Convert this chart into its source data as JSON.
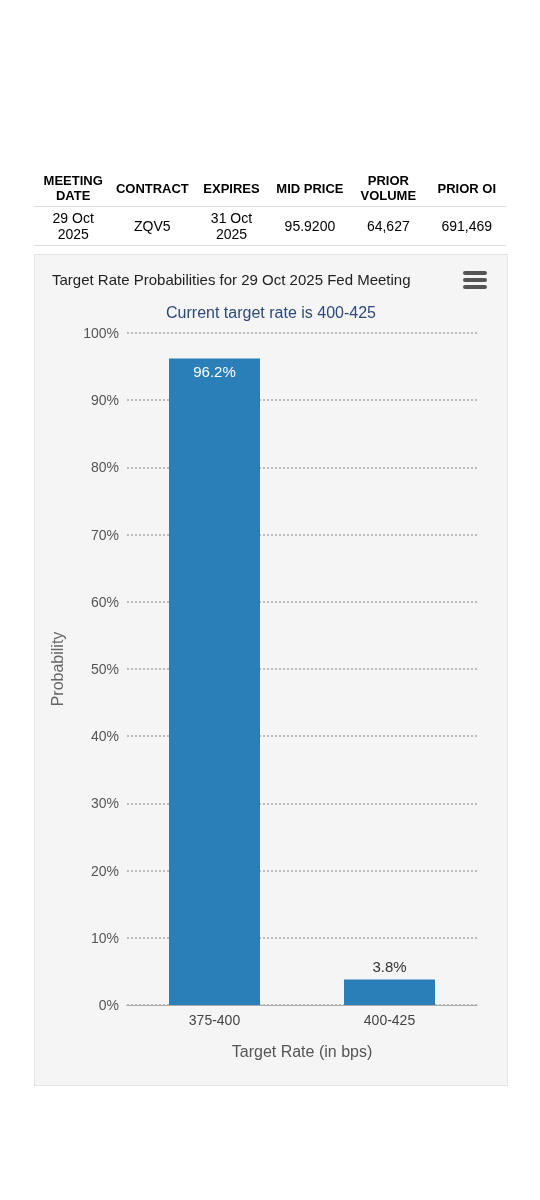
{
  "chart_data": [
    {
      "type": "other",
      "categories": [
        "MEETING DATE",
        "CONTRACT",
        "EXPIRES",
        "MID PRICE",
        "PRIOR VOLUME",
        "PRIOR OI"
      ],
      "annotations": [
        "29 Oct 2025",
        "ZQV5",
        "31 Oct 2025",
        "95.9200",
        "64,627",
        "691,469"
      ]
    },
    {
      "type": "bar",
      "title": "Target Rate Probabilities for 29 Oct 2025 Fed Meeting",
      "subtitle": "Current target rate is 400-425",
      "xlabel": "Target Rate (in bps)",
      "ylabel": "Probability",
      "categories": [
        "375-400",
        "400-425"
      ],
      "values": [
        96.2,
        3.8
      ],
      "color": "#2b7fb8",
      "value_labels": [
        "96.2%",
        "3.8%"
      ],
      "ylim": [
        0,
        100
      ],
      "yticks": [
        {
          "value": 0,
          "label": "0%"
        },
        {
          "value": 10,
          "label": "10%"
        },
        {
          "value": 20,
          "label": "20%"
        },
        {
          "value": 30,
          "label": "30%"
        },
        {
          "value": 40,
          "label": "40%"
        },
        {
          "value": 50,
          "label": "50%"
        },
        {
          "value": 60,
          "label": "60%"
        },
        {
          "value": 70,
          "label": "70%"
        },
        {
          "value": 80,
          "label": "80%"
        },
        {
          "value": 90,
          "label": "90%"
        },
        {
          "value": 100,
          "label": "100%"
        }
      ],
      "grid": "y"
    }
  ]
}
